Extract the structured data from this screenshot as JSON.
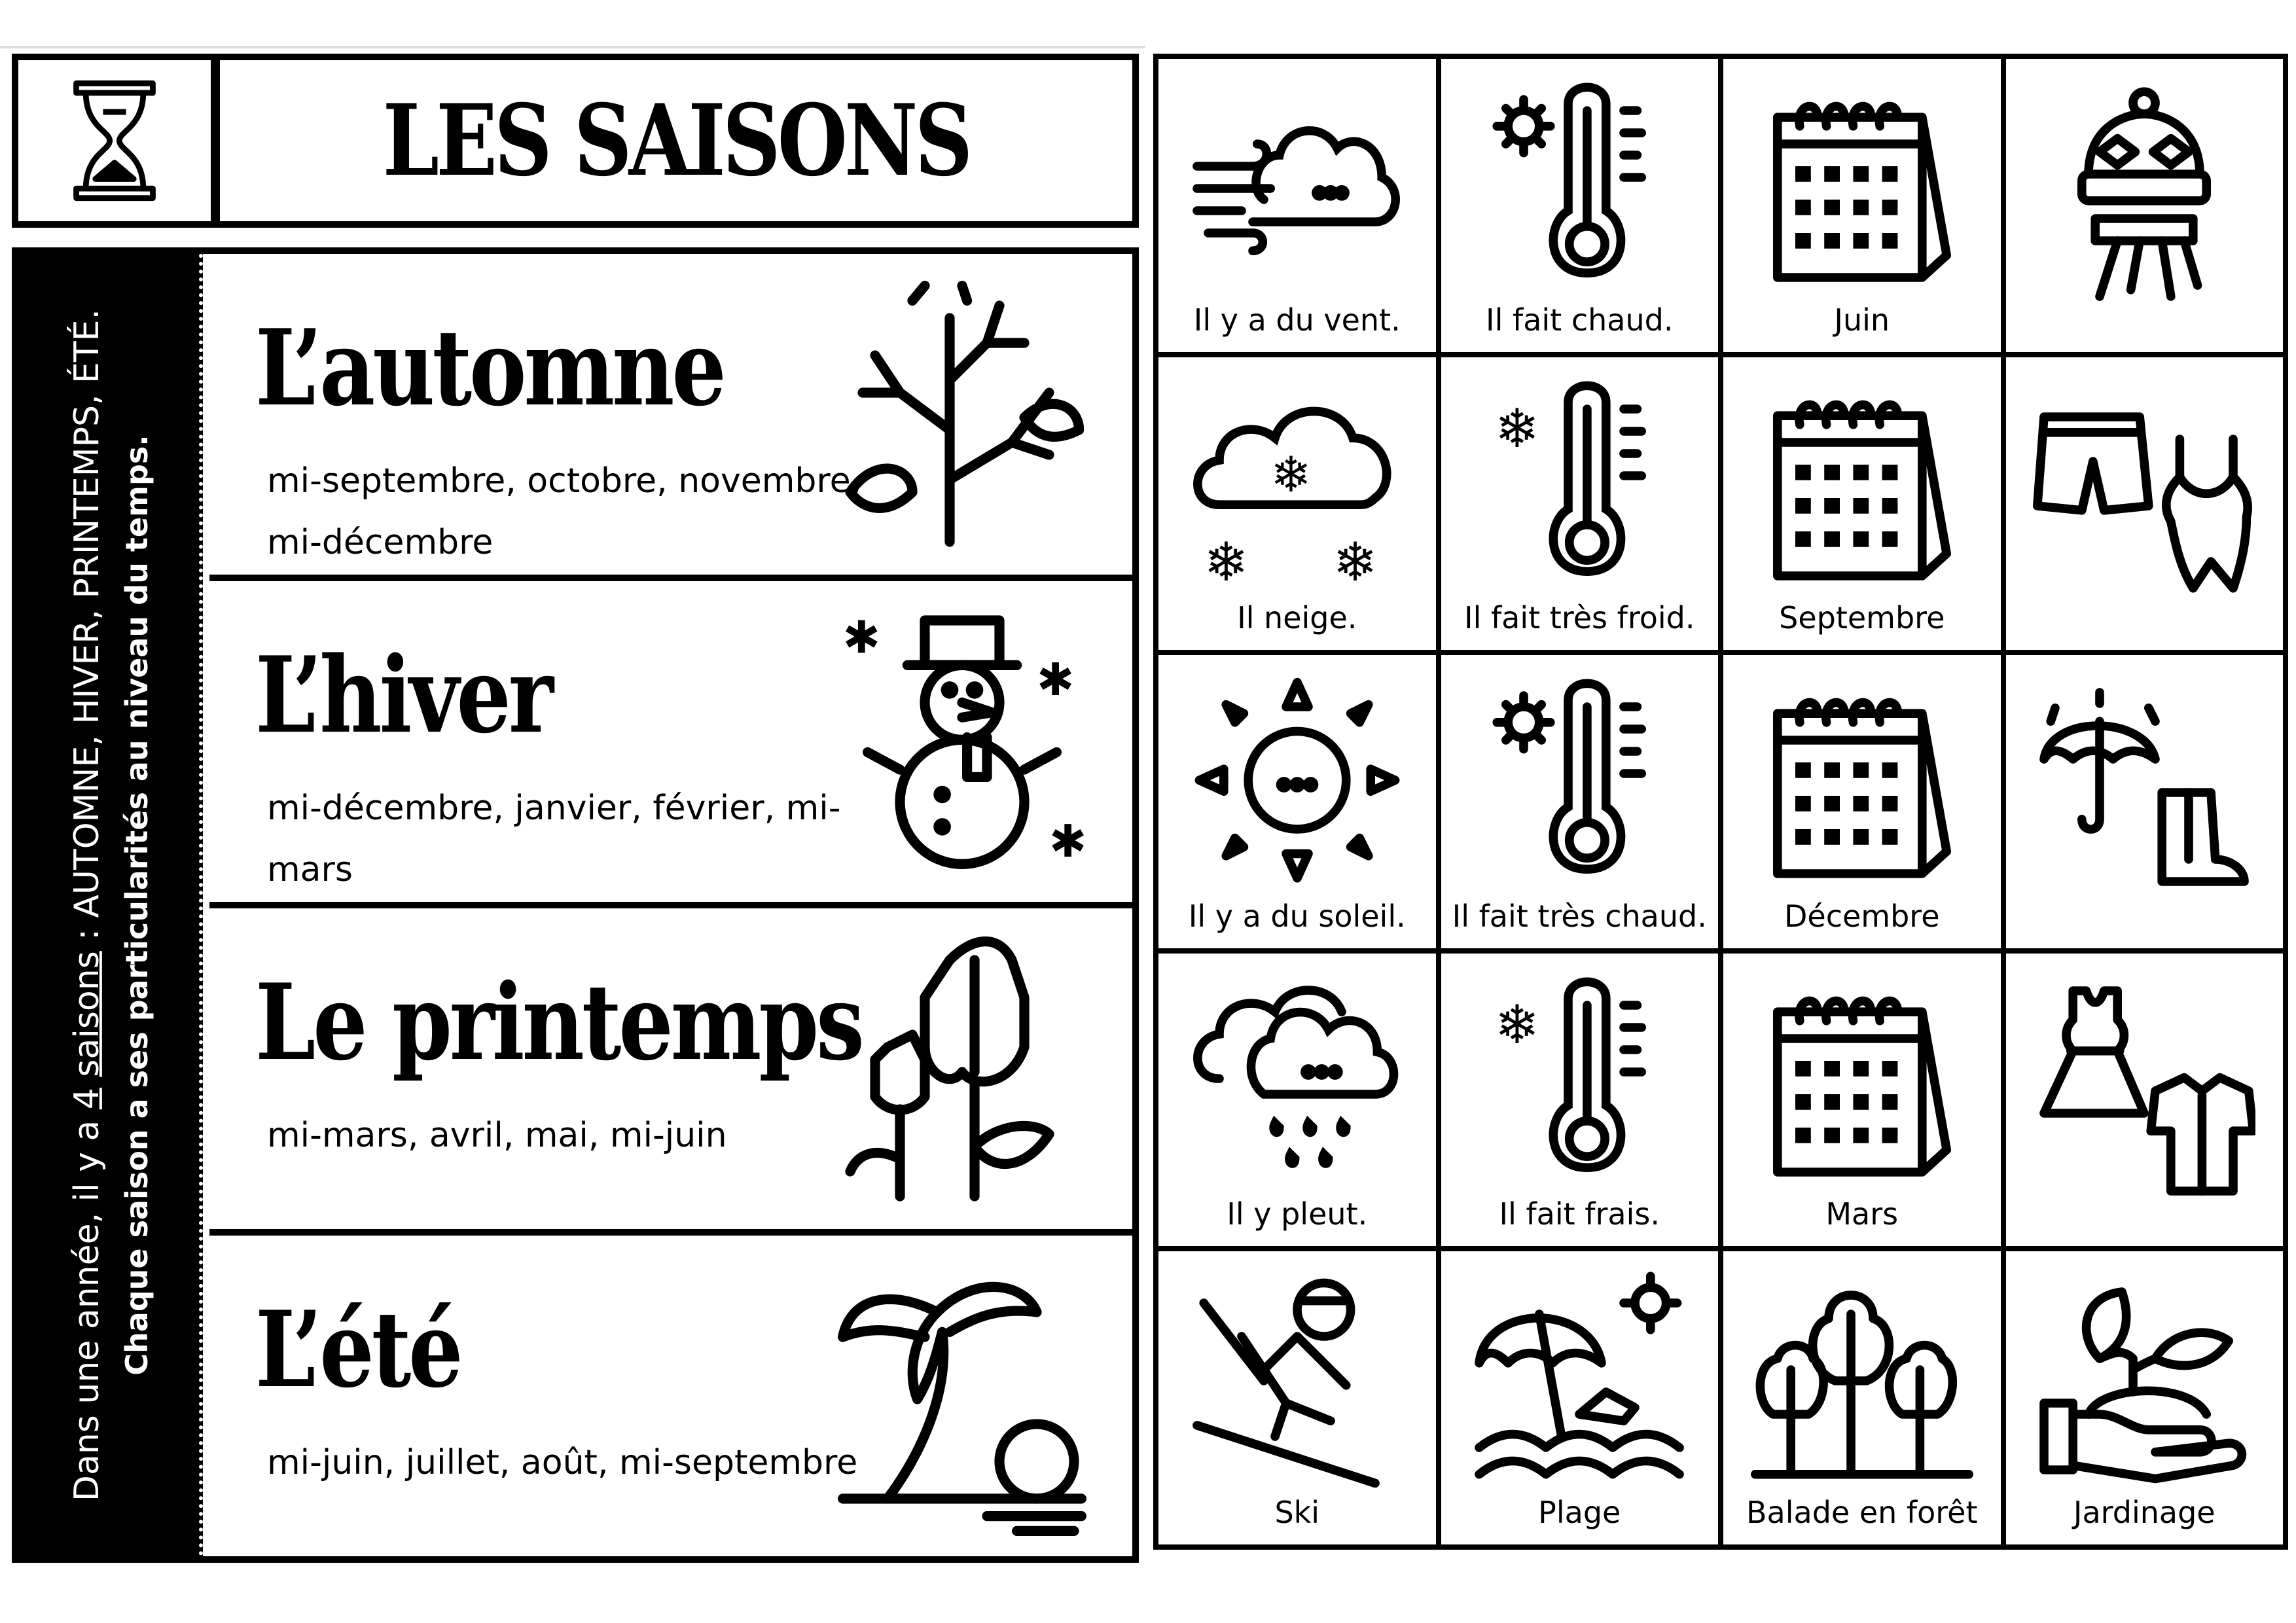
{
  "title": "LES SAISONS",
  "sidebar": {
    "line1_before": "Dans une année, il y a ",
    "line1_number": "4",
    "line1_word": "saisons",
    "line1_after": " : AUTOMNE, HIVER, PRINTEMPS, ÉTÉ.",
    "line2": "Chaque saison a ses particularités au niveau du temps."
  },
  "seasons": [
    {
      "name": "L’automne",
      "months": "mi-septembre, octobre, novembre, mi-décembre",
      "icon": "autumn-tree-icon"
    },
    {
      "name": "L’hiver",
      "months": "mi-décembre, janvier, février, mi-mars",
      "icon": "snowman-icon"
    },
    {
      "name": "Le printemps",
      "months": "mi-mars, avril, mai, mi-juin",
      "icon": "tulip-icon"
    },
    {
      "name": "L’été",
      "months": "mi-juin, juillet, août, mi-septembre",
      "icon": "palm-tree-sunset-icon"
    }
  ],
  "grid": [
    {
      "label": "Il y a du vent.",
      "icon": "wind-cloud-icon"
    },
    {
      "label": "Il fait chaud.",
      "icon": "thermometer-sun-icon"
    },
    {
      "label": "Juin",
      "icon": "calendar-icon"
    },
    {
      "label": "",
      "icon": "hat-scarf-icon"
    },
    {
      "label": "Il neige.",
      "icon": "snow-cloud-icon"
    },
    {
      "label": "Il fait très froid.",
      "icon": "thermometer-snowflake-icon"
    },
    {
      "label": "Septembre",
      "icon": "calendar-icon"
    },
    {
      "label": "",
      "icon": "shorts-swimsuit-icon"
    },
    {
      "label": "Il y a du soleil.",
      "icon": "sun-icon"
    },
    {
      "label": "Il fait très chaud.",
      "icon": "thermometer-sun-icon"
    },
    {
      "label": "Décembre",
      "icon": "calendar-icon"
    },
    {
      "label": "",
      "icon": "umbrella-boots-icon"
    },
    {
      "label": "Il y pleut.",
      "icon": "rain-cloud-icon"
    },
    {
      "label": "Il fait frais.",
      "icon": "thermometer-snowflake-icon"
    },
    {
      "label": "Mars",
      "icon": "calendar-icon"
    },
    {
      "label": "",
      "icon": "dress-shirt-icon"
    },
    {
      "label": "Ski",
      "icon": "skier-icon"
    },
    {
      "label": "Plage",
      "icon": "beach-umbrella-icon"
    },
    {
      "label": "Balade en forêt",
      "icon": "forest-icon"
    },
    {
      "label": "Jardinage",
      "icon": "gardening-hand-icon"
    }
  ]
}
